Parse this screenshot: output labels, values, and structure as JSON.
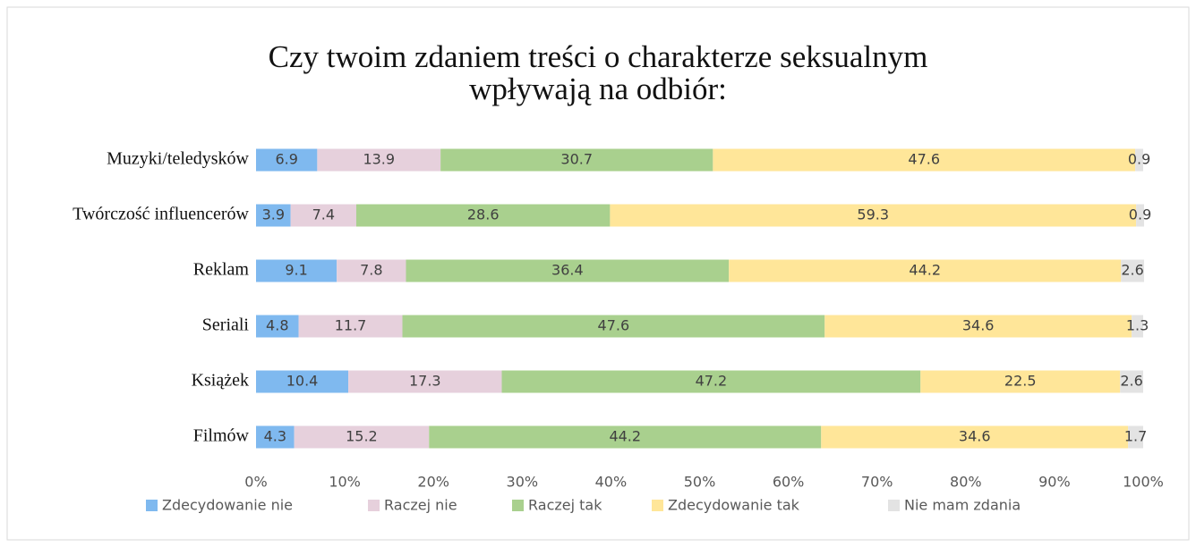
{
  "chart_data": {
    "type": "stacked_barh",
    "title": "Czy twoim zdaniem treści o charakterze seksualnym wpływają na odbiór:",
    "categories": [
      "Muzyki/teledysków",
      "Twórczość influencerów",
      "Reklam",
      "Seriali",
      "Książek",
      "Filmów"
    ],
    "series": [
      {
        "name": "Zdecydowanie nie",
        "color": "#7fb9ef",
        "values": [
          6.9,
          3.9,
          9.1,
          4.8,
          10.4,
          4.3
        ]
      },
      {
        "name": "Raczej nie",
        "color": "#e6d0dc",
        "values": [
          13.9,
          7.4,
          7.8,
          11.7,
          17.3,
          15.2
        ]
      },
      {
        "name": "Raczej tak",
        "color": "#a9d08e",
        "values": [
          30.7,
          28.6,
          36.4,
          47.6,
          47.2,
          44.2
        ]
      },
      {
        "name": "Zdecydowanie tak",
        "color": "#ffe699",
        "values": [
          47.6,
          59.3,
          44.2,
          34.6,
          22.5,
          34.6
        ]
      },
      {
        "name": "Nie mam zdania",
        "color": "#e3e3e3",
        "values": [
          0.9,
          0.9,
          2.6,
          1.3,
          2.6,
          1.7
        ]
      }
    ],
    "xlim": [
      0,
      100
    ],
    "xticks": [
      {
        "value": 0,
        "label": "0%"
      },
      {
        "value": 10,
        "label": "10%"
      },
      {
        "value": 20,
        "label": "20%"
      },
      {
        "value": 30,
        "label": "30%"
      },
      {
        "value": 40,
        "label": "40%"
      },
      {
        "value": 50,
        "label": "50%"
      },
      {
        "value": 60,
        "label": "60%"
      },
      {
        "value": 70,
        "label": "70%"
      },
      {
        "value": 80,
        "label": "80%"
      },
      {
        "value": 90,
        "label": "90%"
      },
      {
        "value": 100,
        "label": "100%"
      }
    ],
    "legend": "bottom"
  }
}
